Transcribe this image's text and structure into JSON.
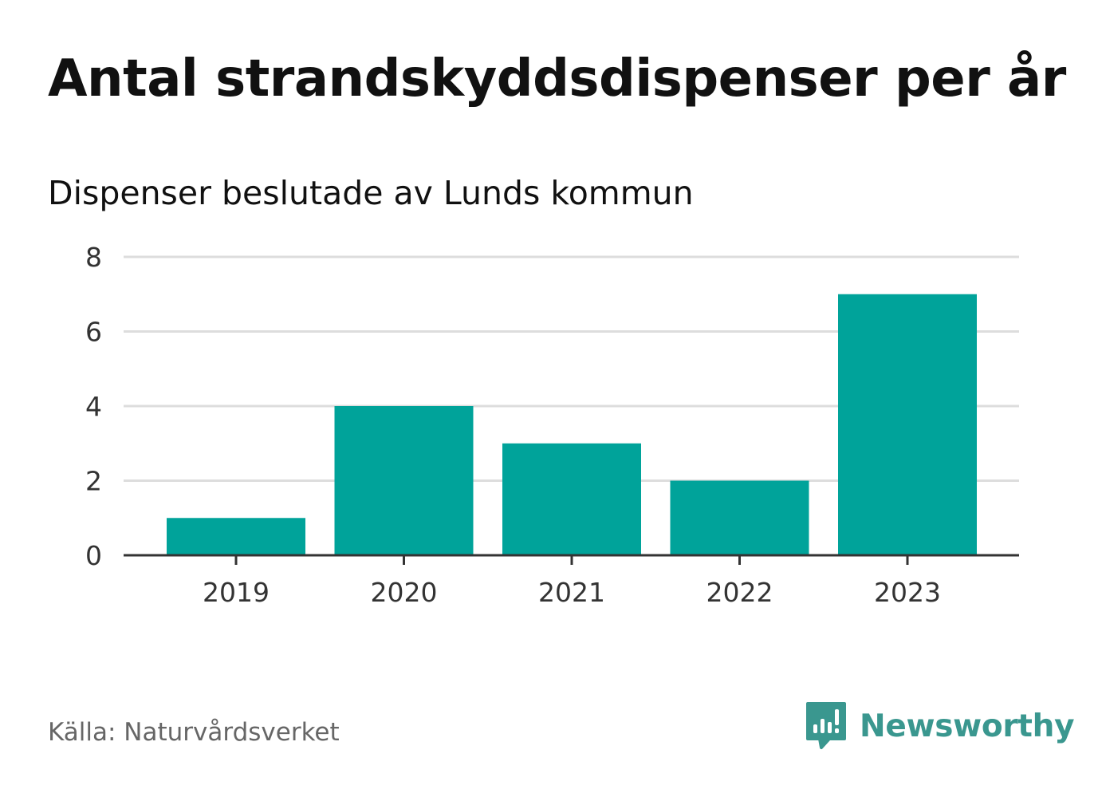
{
  "header": {
    "title": "Antal strandskyddsdispenser per år",
    "subtitle": "Dispenser beslutade av Lunds kommun"
  },
  "footer": {
    "source": "Källa: Naturvårdsverket",
    "brand": "Newsworthy",
    "brand_icon": "newsworthy-logo-icon"
  },
  "colors": {
    "bar": "#00a39a",
    "grid": "#dddddd",
    "axis": "#333333",
    "brand": "#3a978f"
  },
  "chart_data": {
    "type": "bar",
    "title": "Antal strandskyddsdispenser per år",
    "subtitle": "Dispenser beslutade av Lunds kommun",
    "categories": [
      "2019",
      "2020",
      "2021",
      "2022",
      "2023"
    ],
    "values": [
      1,
      4,
      3,
      2,
      7
    ],
    "xlabel": "",
    "ylabel": "",
    "ylim": [
      0,
      8
    ],
    "yticks": [
      "0",
      "2",
      "4",
      "6",
      "8"
    ],
    "grid": true,
    "legend": "none"
  }
}
